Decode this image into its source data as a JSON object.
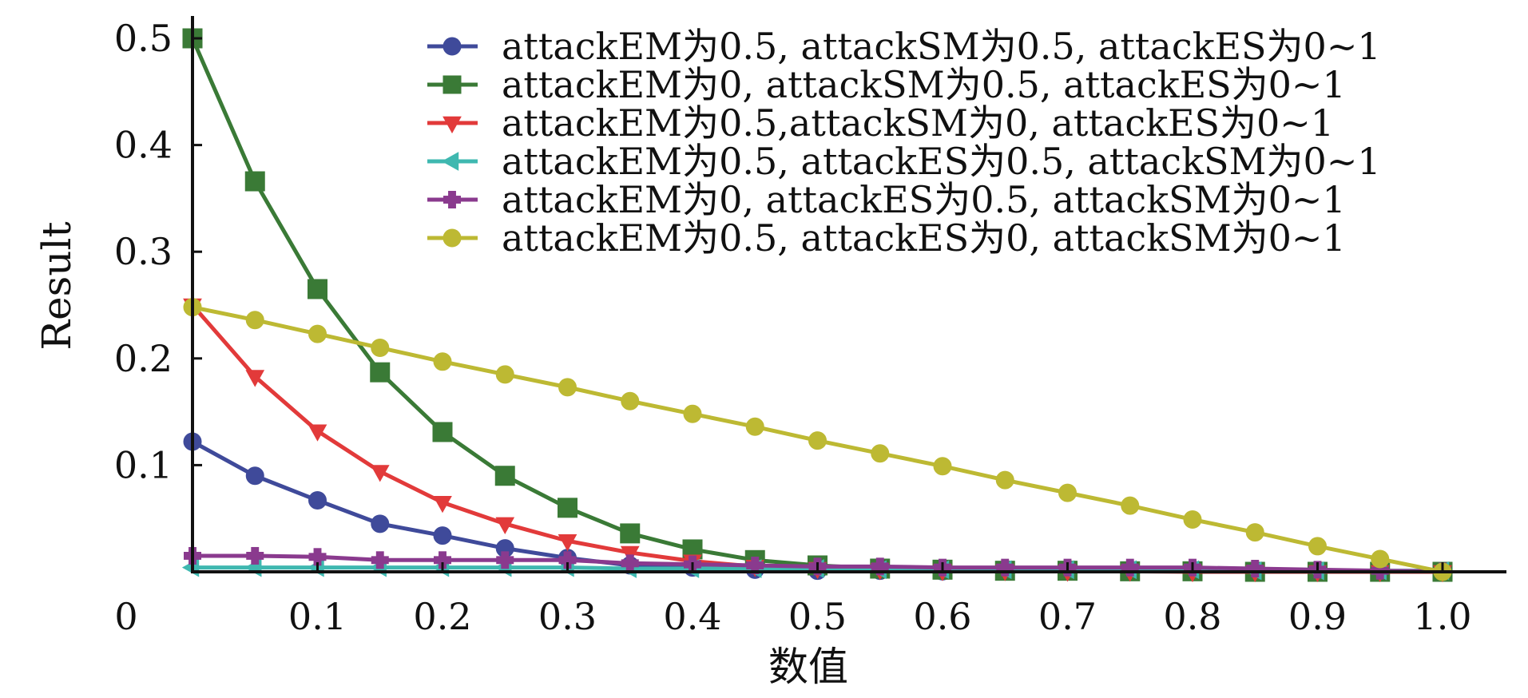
{
  "chart_data": {
    "type": "line",
    "title": "",
    "xlabel": "数值",
    "ylabel": "Result",
    "xlim": [
      0,
      1.0
    ],
    "ylim": [
      0,
      0.5
    ],
    "origin_label": "0",
    "x_ticks": [
      {
        "value": 0.1,
        "label": "0.1"
      },
      {
        "value": 0.2,
        "label": "0.2"
      },
      {
        "value": 0.3,
        "label": "0.3"
      },
      {
        "value": 0.4,
        "label": "0.4"
      },
      {
        "value": 0.5,
        "label": "0.5"
      },
      {
        "value": 0.6,
        "label": "0.6"
      },
      {
        "value": 0.7,
        "label": "0.7"
      },
      {
        "value": 0.8,
        "label": "0.8"
      },
      {
        "value": 0.9,
        "label": "0.9"
      },
      {
        "value": 1.0,
        "label": "1.0"
      }
    ],
    "y_ticks": [
      {
        "value": 0.1,
        "label": "0.1"
      },
      {
        "value": 0.2,
        "label": "0.2"
      },
      {
        "value": 0.3,
        "label": "0.3"
      },
      {
        "value": 0.4,
        "label": "0.4"
      },
      {
        "value": 0.5,
        "label": "0.5"
      }
    ],
    "grid": false,
    "legend_position": "top-right",
    "x": [
      0,
      0.05,
      0.1,
      0.15,
      0.2,
      0.25,
      0.3,
      0.35,
      0.4,
      0.45,
      0.5,
      0.55,
      0.6,
      0.65,
      0.7,
      0.75,
      0.8,
      0.85,
      0.9,
      0.95,
      1.0
    ],
    "series": [
      {
        "name": "attackEM为0.5, attackSM为0.5, attackES为0~1",
        "color": "#3f4a9a",
        "marker": "circle",
        "values": [
          0.122,
          0.09,
          0.067,
          0.045,
          0.034,
          0.022,
          0.013,
          0.006,
          0.004,
          0.002,
          0.001,
          0.001,
          0.0005,
          0.0005,
          0.0005,
          0.0005,
          0.0005,
          0.0,
          0.0,
          0.0,
          0.0
        ]
      },
      {
        "name": "attackEM为0, attackSM为0.5, attackES为0~1",
        "color": "#3a7a36",
        "marker": "square",
        "values": [
          0.5,
          0.366,
          0.265,
          0.187,
          0.131,
          0.09,
          0.06,
          0.036,
          0.021,
          0.011,
          0.006,
          0.003,
          0.002,
          0.001,
          0.001,
          0.0005,
          0.0005,
          0.0,
          0.0,
          0.0,
          0.0
        ]
      },
      {
        "name": "attackEM为0.5,attackSM为0,  attackES为0~1",
        "color": "#e23a3a",
        "marker": "triangle-down",
        "values": [
          0.25,
          0.183,
          0.132,
          0.094,
          0.065,
          0.045,
          0.029,
          0.018,
          0.01,
          0.005,
          0.003,
          0.002,
          0.001,
          0.001,
          0.0005,
          0.0005,
          0.0,
          0.0,
          0.0,
          0.0,
          0.0
        ]
      },
      {
        "name": "attackEM为0.5, attackES为0.5, attackSM为0~1",
        "color": "#3fb8b0",
        "marker": "triangle-left",
        "values": [
          0.004,
          0.004,
          0.004,
          0.004,
          0.004,
          0.004,
          0.004,
          0.003,
          0.003,
          0.003,
          0.003,
          0.002,
          0.002,
          0.002,
          0.002,
          0.002,
          0.002,
          0.001,
          0.001,
          0.001,
          0.001
        ]
      },
      {
        "name": "attackEM为0, attackES为0.5, attackSM为0~1",
        "color": "#8a3a8e",
        "marker": "plus",
        "values": [
          0.015,
          0.015,
          0.014,
          0.011,
          0.011,
          0.011,
          0.011,
          0.008,
          0.007,
          0.006,
          0.005,
          0.005,
          0.004,
          0.004,
          0.004,
          0.004,
          0.004,
          0.003,
          0.002,
          0.001,
          0.0005
        ]
      },
      {
        "name": "attackEM为0.5, attackES为0, attackSM为0~1",
        "color": "#bdb933",
        "marker": "circle",
        "values": [
          0.248,
          0.236,
          0.223,
          0.21,
          0.197,
          0.185,
          0.173,
          0.16,
          0.148,
          0.136,
          0.123,
          0.111,
          0.099,
          0.086,
          0.074,
          0.062,
          0.049,
          0.037,
          0.024,
          0.012,
          0.0
        ]
      }
    ]
  }
}
